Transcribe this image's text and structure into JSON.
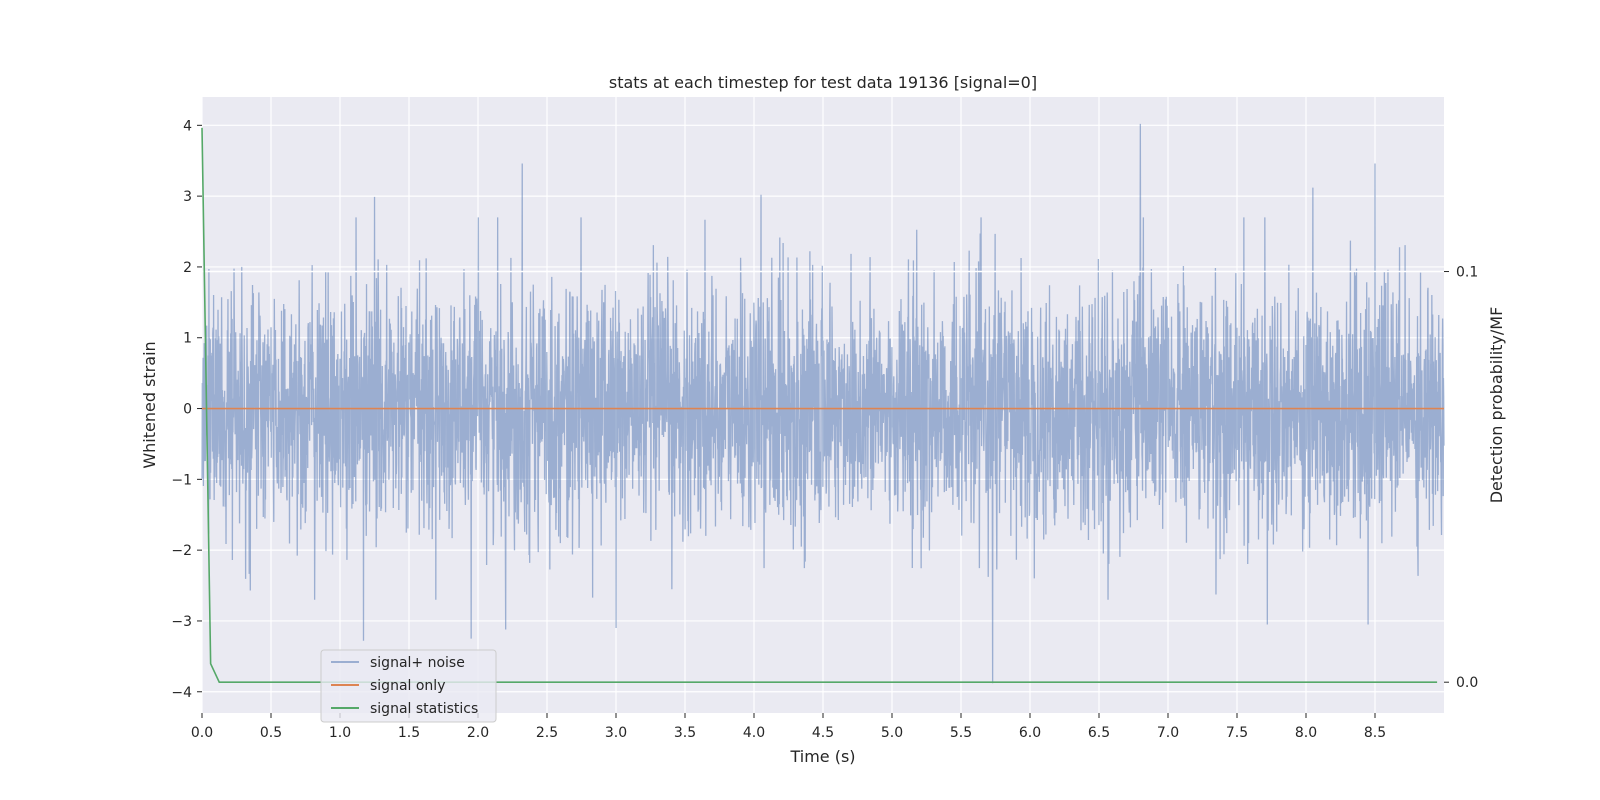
{
  "chart_data": {
    "type": "line",
    "title": "stats at each timestep for test data 19136 [signal=0]",
    "xlabel": "Time (s)",
    "ylabel": "Whitened strain",
    "y2label": "Detection probability/MF",
    "xlim": [
      0.0,
      9.0
    ],
    "ylim": [
      -4.3,
      4.4
    ],
    "y2lim": [
      -0.0075,
      0.1425
    ],
    "x_ticks": [
      "0.0",
      "0.5",
      "1.0",
      "1.5",
      "2.0",
      "2.5",
      "3.0",
      "3.5",
      "4.0",
      "4.5",
      "5.0",
      "5.5",
      "6.0",
      "6.5",
      "7.0",
      "7.5",
      "8.0",
      "8.5"
    ],
    "x_tick_values": [
      0.0,
      0.5,
      1.0,
      1.5,
      2.0,
      2.5,
      3.0,
      3.5,
      4.0,
      4.5,
      5.0,
      5.5,
      6.0,
      6.5,
      7.0,
      7.5,
      8.0,
      8.5
    ],
    "y_ticks": [
      "−4",
      "−3",
      "−2",
      "−1",
      "0",
      "1",
      "2",
      "3",
      "4"
    ],
    "y_tick_values": [
      -4,
      -3,
      -2,
      -1,
      0,
      1,
      2,
      3,
      4
    ],
    "y2_ticks": [
      "0.0",
      "0.1"
    ],
    "y2_tick_values": [
      0.0,
      0.1
    ],
    "grid": true,
    "legend_position": "lower-left",
    "series": [
      {
        "name": "signal+ noise",
        "axis": "left",
        "color": "#4c72b0",
        "opacity": 0.5,
        "description": "dense whitened noise, roughly within ±2.5 with spikes",
        "peaks": [
          {
            "x": 6.8,
            "y": 4.02
          },
          {
            "x": 2.32,
            "y": 3.46
          },
          {
            "x": 8.5,
            "y": 3.46
          },
          {
            "x": 4.05,
            "y": 3.02
          },
          {
            "x": 1.25,
            "y": 2.99
          },
          {
            "x": 8.05,
            "y": 3.12
          },
          {
            "x": 5.73,
            "y": -3.88
          },
          {
            "x": 1.17,
            "y": -3.28
          },
          {
            "x": 1.95,
            "y": -3.25
          },
          {
            "x": 2.2,
            "y": -3.12
          },
          {
            "x": 3.0,
            "y": -3.1
          },
          {
            "x": 0.35,
            "y": -2.57
          },
          {
            "x": 7.72,
            "y": -3.05
          },
          {
            "x": 8.45,
            "y": -3.05
          }
        ]
      },
      {
        "name": "signal only",
        "axis": "left",
        "color": "#dd8452",
        "x": [
          0.0,
          9.0
        ],
        "y": [
          0.0,
          0.0
        ]
      },
      {
        "name": "signal statistics",
        "axis": "right",
        "color": "#55a868",
        "x": [
          0.0,
          0.0625,
          0.125,
          0.5,
          1.0,
          2.0,
          3.0,
          4.0,
          5.0,
          6.0,
          7.0,
          8.0,
          8.95
        ],
        "y": [
          0.135,
          0.0045,
          0.0,
          0.0,
          0.0,
          0.0,
          0.0,
          0.0,
          0.0,
          0.0,
          0.0,
          0.0,
          0.0
        ]
      }
    ],
    "reference_lines": [
      {
        "axis": "right",
        "y": 0.1,
        "color": "#ffffff"
      }
    ]
  }
}
